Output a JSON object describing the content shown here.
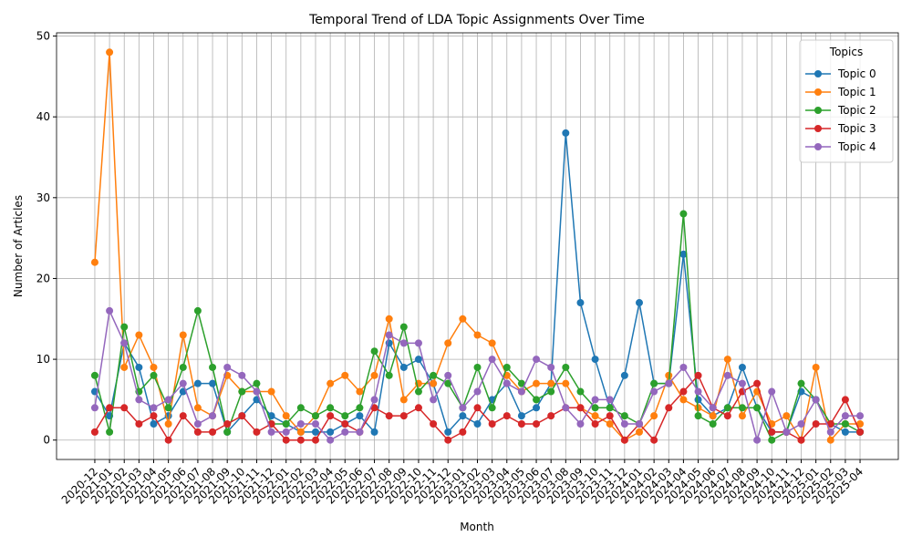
{
  "chart_data": {
    "type": "line",
    "title": "Temporal Trend of LDA Topic Assignments Over Time",
    "x_label": "Month",
    "y_label": "Number of Articles",
    "categories": [
      "2020-12",
      "2021-01",
      "2021-02",
      "2021-03",
      "2021-04",
      "2021-05",
      "2021-06",
      "2021-07",
      "2021-08",
      "2021-09",
      "2021-10",
      "2021-11",
      "2021-12",
      "2022-01",
      "2022-02",
      "2022-03",
      "2022-04",
      "2022-05",
      "2022-06",
      "2022-07",
      "2022-08",
      "2022-09",
      "2022-10",
      "2022-11",
      "2022-12",
      "2023-01",
      "2023-02",
      "2023-03",
      "2023-04",
      "2023-05",
      "2023-06",
      "2023-07",
      "2023-08",
      "2023-09",
      "2023-10",
      "2023-11",
      "2023-12",
      "2024-01",
      "2024-02",
      "2024-03",
      "2024-04",
      "2024-05",
      "2024-06",
      "2024-07",
      "2024-08",
      "2024-09",
      "2024-10",
      "2024-11",
      "2024-12",
      "2025-01",
      "2025-02",
      "2025-03",
      "2025-04"
    ],
    "series": [
      {
        "name": "Topic 0",
        "color": "#1f77b4",
        "values": [
          6,
          3,
          12,
          9,
          2,
          3,
          6,
          7,
          7,
          1,
          3,
          5,
          3,
          2,
          1,
          1,
          1,
          2,
          3,
          1,
          12,
          9,
          10,
          7,
          1,
          3,
          2,
          5,
          7,
          3,
          4,
          7,
          38,
          17,
          10,
          4,
          8,
          17,
          7,
          7,
          23,
          5,
          3,
          4,
          9,
          4,
          1,
          1,
          6,
          5,
          2,
          1,
          1
        ]
      },
      {
        "name": "Topic 1",
        "color": "#ff7f0e",
        "values": [
          22,
          48,
          9,
          13,
          9,
          2,
          13,
          4,
          3,
          8,
          6,
          6,
          6,
          3,
          1,
          3,
          7,
          8,
          6,
          8,
          15,
          5,
          7,
          7,
          12,
          15,
          13,
          12,
          8,
          6,
          7,
          7,
          7,
          4,
          3,
          2,
          0,
          1,
          3,
          8,
          5,
          4,
          3,
          10,
          3,
          6,
          2,
          3,
          0,
          9,
          0,
          2,
          2
        ]
      },
      {
        "name": "Topic 2",
        "color": "#2ca02c",
        "values": [
          8,
          1,
          14,
          6,
          8,
          4,
          9,
          16,
          9,
          1,
          6,
          7,
          2,
          2,
          4,
          3,
          4,
          3,
          4,
          11,
          8,
          14,
          6,
          8,
          7,
          4,
          9,
          4,
          9,
          7,
          5,
          6,
          9,
          6,
          4,
          4,
          3,
          2,
          7,
          7,
          28,
          3,
          2,
          4,
          4,
          4,
          0,
          1,
          7,
          5,
          2,
          2,
          1
        ]
      },
      {
        "name": "Topic 3",
        "color": "#d62728",
        "values": [
          1,
          4,
          4,
          2,
          3,
          0,
          3,
          1,
          1,
          2,
          3,
          1,
          2,
          0,
          0,
          0,
          3,
          2,
          1,
          4,
          3,
          3,
          4,
          2,
          0,
          1,
          4,
          2,
          3,
          2,
          2,
          3,
          4,
          4,
          2,
          3,
          0,
          2,
          0,
          4,
          6,
          8,
          4,
          3,
          6,
          7,
          1,
          1,
          0,
          2,
          2,
          5,
          1
        ]
      },
      {
        "name": "Topic 4",
        "color": "#9467bd",
        "values": [
          4,
          16,
          12,
          5,
          4,
          5,
          7,
          2,
          3,
          9,
          8,
          6,
          1,
          1,
          2,
          2,
          0,
          1,
          1,
          5,
          13,
          12,
          12,
          5,
          8,
          4,
          6,
          10,
          7,
          6,
          10,
          9,
          4,
          2,
          5,
          5,
          2,
          2,
          6,
          7,
          9,
          6,
          4,
          8,
          7,
          0,
          6,
          1,
          2,
          5,
          1,
          3,
          3
        ]
      }
    ],
    "ylim": [
      -2.4,
      50.4
    ],
    "yticks": [
      0,
      10,
      20,
      30,
      40,
      50
    ],
    "grid": true,
    "legend_title": "Topics",
    "legend_position": "upper-right"
  }
}
